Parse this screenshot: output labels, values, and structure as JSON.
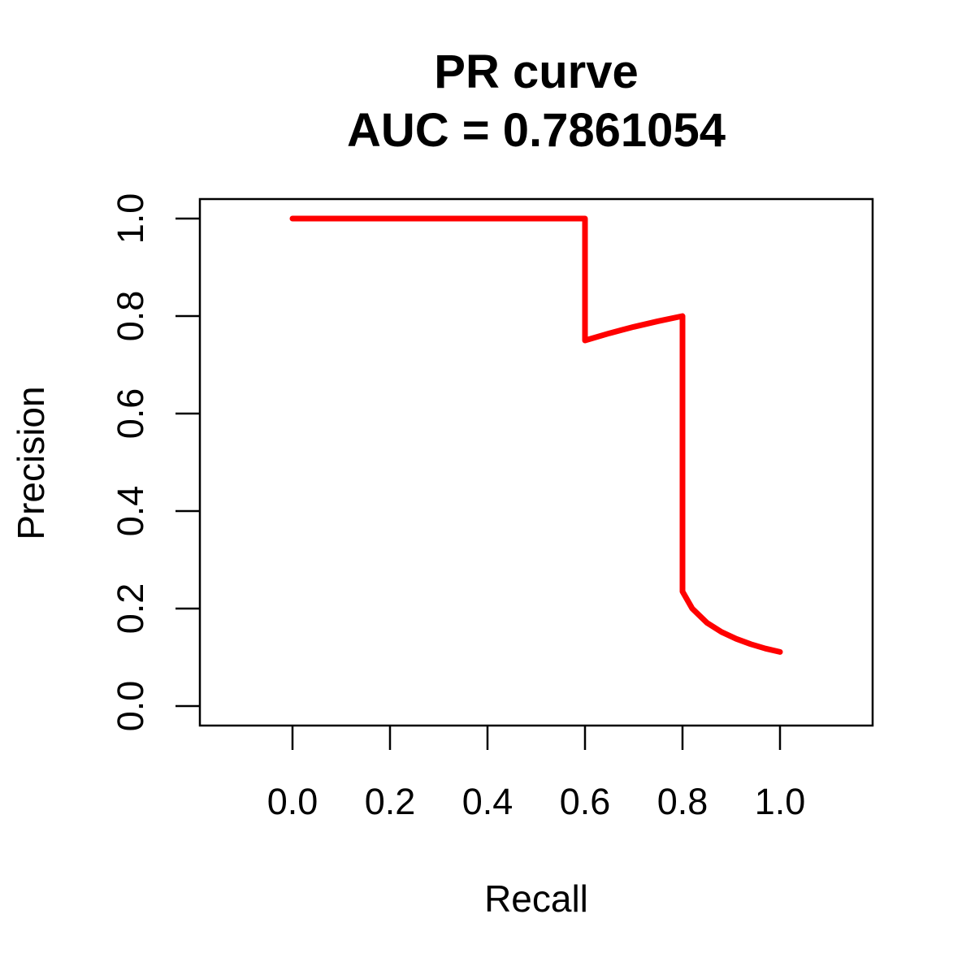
{
  "chart_data": {
    "type": "line",
    "title": "PR curve",
    "subtitle": "AUC = 0.7861054",
    "xlabel": "Recall",
    "ylabel": "Precision",
    "xlim": [
      -0.19,
      1.19
    ],
    "ylim": [
      -0.04,
      1.04
    ],
    "x_ticks": [
      "0.0",
      "0.2",
      "0.4",
      "0.6",
      "0.8",
      "1.0"
    ],
    "y_ticks": [
      "0.0",
      "0.2",
      "0.4",
      "0.6",
      "0.8",
      "1.0"
    ],
    "series": [
      {
        "name": "PR curve",
        "color": "#ff0000",
        "x": [
          0.0,
          0.6,
          0.6,
          0.65,
          0.7,
          0.75,
          0.8,
          0.8,
          0.82,
          0.85,
          0.88,
          0.91,
          0.94,
          0.97,
          1.0
        ],
        "y": [
          1.0,
          1.0,
          0.75,
          0.7647,
          0.7778,
          0.7895,
          0.8,
          0.235,
          0.2,
          0.171,
          0.152,
          0.138,
          0.127,
          0.118,
          0.111
        ]
      }
    ]
  }
}
